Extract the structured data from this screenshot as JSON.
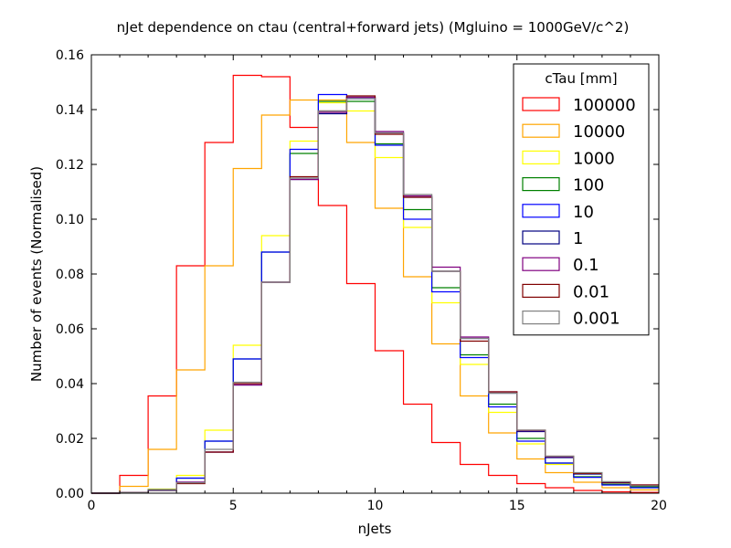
{
  "chart_data": {
    "type": "line",
    "step": true,
    "title": "nJet dependence on ctau (central+forward jets) (Mgluino = 1000GeV/c^2)",
    "xlabel": "nJets",
    "ylabel": "Number of events (Normalised)",
    "xlim": [
      0,
      20
    ],
    "ylim": [
      0,
      0.16
    ],
    "xticks": [
      0,
      5,
      10,
      15,
      20
    ],
    "yticks": [
      0.0,
      0.02,
      0.04,
      0.06,
      0.08,
      0.1,
      0.12,
      0.14,
      0.16
    ],
    "ytick_labels": [
      "0.00",
      "0.02",
      "0.04",
      "0.06",
      "0.08",
      "0.10",
      "0.12",
      "0.14",
      "0.16"
    ],
    "grid": false,
    "legend": {
      "title": "cTau [mm]",
      "position": "top-right"
    },
    "x": [
      0,
      1,
      2,
      3,
      4,
      5,
      6,
      7,
      8,
      9,
      10,
      11,
      12,
      13,
      14,
      15,
      16,
      17,
      18,
      19
    ],
    "series": [
      {
        "name": "100000",
        "color": "#ff0000",
        "values": [
          0.0,
          0.0065,
          0.0355,
          0.083,
          0.128,
          0.1525,
          0.152,
          0.1335,
          0.105,
          0.0765,
          0.052,
          0.0325,
          0.0185,
          0.0105,
          0.0065,
          0.0035,
          0.002,
          0.001,
          0.0005,
          0.0003
        ]
      },
      {
        "name": "10000",
        "color": "#ffa500",
        "values": [
          0.0,
          0.0025,
          0.016,
          0.045,
          0.083,
          0.1185,
          0.138,
          0.1435,
          0.1435,
          0.128,
          0.104,
          0.079,
          0.0545,
          0.0355,
          0.022,
          0.0125,
          0.0075,
          0.004,
          0.002,
          0.0012
        ]
      },
      {
        "name": "1000",
        "color": "#ffff00",
        "values": [
          0.0,
          0.0002,
          0.0015,
          0.0065,
          0.023,
          0.054,
          0.094,
          0.1285,
          0.1425,
          0.1395,
          0.1225,
          0.097,
          0.0695,
          0.047,
          0.0295,
          0.018,
          0.0105,
          0.0058,
          0.0033,
          0.0022
        ]
      },
      {
        "name": "100",
        "color": "#008000",
        "values": [
          0.0,
          0.0002,
          0.0012,
          0.0055,
          0.019,
          0.049,
          0.088,
          0.124,
          0.143,
          0.143,
          0.1275,
          0.1035,
          0.075,
          0.0505,
          0.0325,
          0.02,
          0.011,
          0.006,
          0.0032,
          0.0023
        ]
      },
      {
        "name": "10",
        "color": "#0000ff",
        "values": [
          0.0,
          0.0002,
          0.0012,
          0.0055,
          0.019,
          0.049,
          0.088,
          0.1255,
          0.1455,
          0.144,
          0.127,
          0.1,
          0.0735,
          0.0495,
          0.0315,
          0.019,
          0.011,
          0.0058,
          0.003,
          0.002
        ]
      },
      {
        "name": "1",
        "color": "#000080",
        "values": [
          0.0,
          0.0002,
          0.001,
          0.004,
          0.015,
          0.0395,
          0.077,
          0.1145,
          0.1385,
          0.1445,
          0.1315,
          0.108,
          0.081,
          0.0565,
          0.0365,
          0.0225,
          0.013,
          0.007,
          0.0038,
          0.0027
        ]
      },
      {
        "name": "0.1",
        "color": "#800080",
        "values": [
          0.0,
          0.0002,
          0.001,
          0.004,
          0.015,
          0.0395,
          0.077,
          0.1145,
          0.139,
          0.1445,
          0.132,
          0.1085,
          0.0825,
          0.057,
          0.037,
          0.0228,
          0.0133,
          0.0072,
          0.004,
          0.003
        ]
      },
      {
        "name": "0.01",
        "color": "#800000",
        "values": [
          0.0,
          0.0002,
          0.001,
          0.0035,
          0.015,
          0.04,
          0.077,
          0.1155,
          0.1395,
          0.145,
          0.131,
          0.108,
          0.081,
          0.0555,
          0.037,
          0.023,
          0.0135,
          0.0072,
          0.004,
          0.003
        ]
      },
      {
        "name": "0.001",
        "color": "#808080",
        "values": [
          0.0,
          0.0002,
          0.001,
          0.0038,
          0.016,
          0.0405,
          0.077,
          0.115,
          0.1395,
          0.144,
          0.1315,
          0.109,
          0.081,
          0.0565,
          0.0365,
          0.023,
          0.0135,
          0.0075,
          0.0042,
          0.0027
        ]
      }
    ]
  }
}
